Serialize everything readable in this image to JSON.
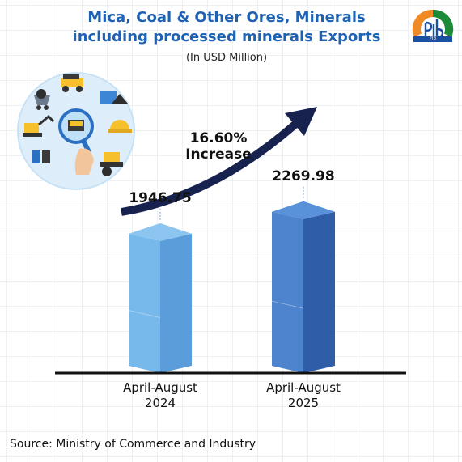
{
  "header": {
    "title_line1": "Mica, Coal & Other Ores, Minerals",
    "title_line2": "including processed minerals Exports",
    "subtitle": "(In USD Million)"
  },
  "logo": {
    "text": "PIB"
  },
  "illustration": {
    "icon": "mining-magnifier-illustration"
  },
  "chart_data": {
    "type": "bar",
    "categories": [
      "April-August 2024",
      "April-August 2025"
    ],
    "category_lines": [
      [
        "April-August",
        "2024"
      ],
      [
        "April-August",
        "2025"
      ]
    ],
    "values": [
      1946.75,
      2269.98
    ],
    "value_labels": [
      "1946.75",
      "2269.98"
    ],
    "annotation": {
      "line1": "16.60%",
      "line2": "Increase"
    },
    "ylabel": "",
    "xlabel": "",
    "grid": true
  },
  "colors": {
    "title": "#1f62b3",
    "bar_2024_light": "#6db3ea",
    "bar_2024_dark": "#4d95d8",
    "bar_2025_light": "#3f78c9",
    "bar_2025_dark": "#1e4fa0",
    "arrow": "#17234e",
    "axis": "#111111"
  },
  "footer": {
    "source": "Source: Ministry of Commerce and Industry"
  }
}
